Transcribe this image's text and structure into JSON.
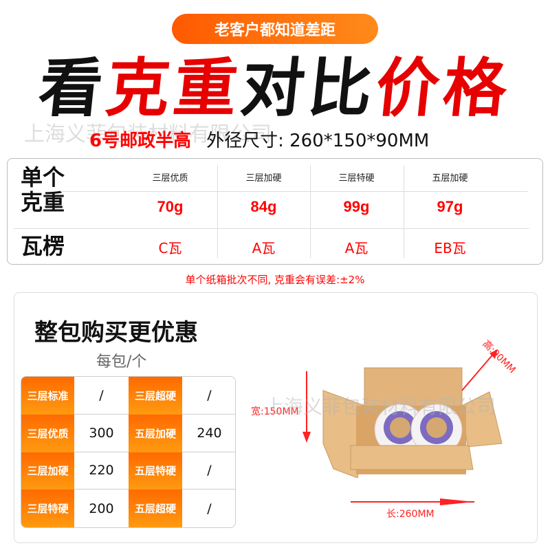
{
  "banner": "老客户都知道差距",
  "headline": [
    {
      "text": "看",
      "color": "#111111"
    },
    {
      "text": "克重",
      "color": "#e60000"
    },
    {
      "text": "对比",
      "color": "#111111"
    },
    {
      "text": "价格",
      "color": "#e60000"
    }
  ],
  "watermark": "上海义菲包装材料有限公司",
  "subtitle": {
    "model": "6号邮政半高",
    "size": "外径尺寸: 260*150*90MM"
  },
  "weight_table": {
    "row_label_weight": "单个克重",
    "row_label_flute": "瓦楞",
    "columns": [
      {
        "name": "三层优质",
        "weight": "70g",
        "flute": "C瓦"
      },
      {
        "name": "三层加硬",
        "weight": "84g",
        "flute": "A瓦"
      },
      {
        "name": "三层特硬",
        "weight": "99g",
        "flute": "A瓦"
      },
      {
        "name": "五层加硬",
        "weight": "97g",
        "flute": "EB瓦"
      }
    ]
  },
  "note": "单个纸箱批次不同, 克重会有误差:±2%",
  "bulk": {
    "title": "整包购买更优惠",
    "unit": "每包/个",
    "rows": [
      {
        "l1": "三层标准",
        "v1": "/",
        "l2": "三层超硬",
        "v2": "/"
      },
      {
        "l1": "三层优质",
        "v1": "300",
        "l2": "五层加硬",
        "v2": "240"
      },
      {
        "l1": "三层加硬",
        "v1": "220",
        "l2": "五层特硬",
        "v2": "/"
      },
      {
        "l1": "三层特硬",
        "v1": "200",
        "l2": "五层超硬",
        "v2": "/"
      }
    ]
  },
  "dimensions": {
    "height": "高:90MM",
    "width": "宽:150MM",
    "length": "长:260MM"
  },
  "colors": {
    "accent": "#ff6a00",
    "red": "#ff0000"
  }
}
